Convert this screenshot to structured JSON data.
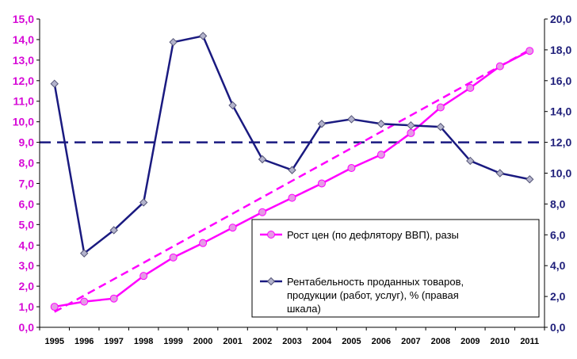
{
  "chart_data": {
    "type": "line",
    "categories": [
      "1995",
      "1996",
      "1997",
      "1998",
      "1999",
      "2000",
      "2001",
      "2002",
      "2003",
      "2004",
      "2005",
      "2006",
      "2007",
      "2008",
      "2009",
      "2010",
      "2011"
    ],
    "y_left": {
      "ylim": [
        0,
        15
      ],
      "ticks": [
        "0,0",
        "1,0",
        "2,0",
        "3,0",
        "4,0",
        "5,0",
        "6,0",
        "7,0",
        "8,0",
        "9,0",
        "10,0",
        "11,0",
        "12,0",
        "13,0",
        "14,0",
        "15,0"
      ]
    },
    "y_right": {
      "ylim": [
        0,
        20
      ],
      "ticks": [
        "0,0",
        "2,0",
        "4,0",
        "6,0",
        "8,0",
        "10,0",
        "12,0",
        "14,0",
        "16,0",
        "18,0",
        "20,0"
      ]
    },
    "series": [
      {
        "name": "Рост цен (по дефлятору ВВП), разы",
        "axis": "left",
        "color": "#ff00ff",
        "marker_color": "#e59ae5",
        "values": [
          1.0,
          1.25,
          1.4,
          2.5,
          3.4,
          4.1,
          4.85,
          5.6,
          6.3,
          7.0,
          7.75,
          8.4,
          9.45,
          10.7,
          11.65,
          12.7,
          13.45
        ]
      },
      {
        "name": "Рентабельность проданных товаров, продукции (работ, услуг), % (правая шкала)",
        "axis": "right",
        "color": "#1a1a80",
        "marker_color": "#b3b3cc",
        "values": [
          15.8,
          4.8,
          6.3,
          8.1,
          18.5,
          18.9,
          14.4,
          10.9,
          10.2,
          13.2,
          13.5,
          13.2,
          13.1,
          13.0,
          10.8,
          10.0,
          9.6
        ]
      }
    ],
    "reference_lines": [
      {
        "axis": "right",
        "value": 12.0,
        "color": "#1a1a80",
        "style": "dashed"
      }
    ],
    "trendlines": [
      {
        "series": 0,
        "color": "#ff00ff",
        "style": "dashed",
        "start_value": 0.75,
        "end_value": 13.5
      }
    ],
    "legend": {
      "placement": "lower-right",
      "entries": [
        {
          "lines": [
            "Рост цен (по дефлятору ВВП), разы"
          ]
        },
        {
          "lines": [
            "Рентабельность проданных товаров,",
            "продукции (работ, услуг), % (правая",
            "шкала)"
          ]
        }
      ]
    },
    "grid": false
  }
}
